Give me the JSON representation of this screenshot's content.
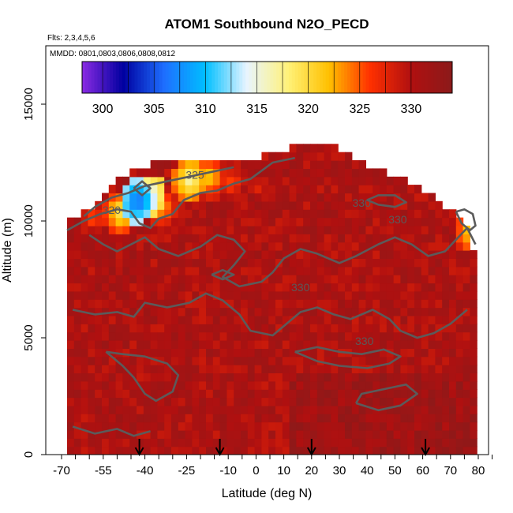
{
  "chart_data": {
    "type": "heatmap",
    "title": "ATOM1 Southbound N2O_PECD",
    "flights_label": "Flts: 2,3,4,5,6",
    "dates_label": "MMDD: 0801,0803,0806,0808,0812",
    "xlabel": "Latitude (deg N)",
    "ylabel": "Altitude (m)",
    "xlim": [
      -70,
      85
    ],
    "ylim": [
      0,
      17500
    ],
    "x_ticks": [
      -70,
      -55,
      -40,
      -25,
      -10,
      0,
      10,
      20,
      30,
      40,
      50,
      60,
      70,
      80
    ],
    "y_ticks": [
      0,
      5000,
      10000,
      15000
    ],
    "colorbar": {
      "range": [
        298,
        334
      ],
      "tick_values": [
        300,
        305,
        310,
        315,
        320,
        325,
        330
      ],
      "colors": [
        "#8a2be2",
        "#0000a0",
        "#1e6fff",
        "#00bfff",
        "#e8f4ff",
        "#fff27a",
        "#ffc000",
        "#ff3000",
        "#b01010",
        "#8b1a1a"
      ]
    },
    "contour_labels": [
      {
        "text": "320",
        "x": -52,
        "y": 10300
      },
      {
        "text": "325",
        "x": -22,
        "y": 11800
      },
      {
        "text": "330",
        "x": 38,
        "y": 10600
      },
      {
        "text": "330",
        "x": 51,
        "y": 9900
      },
      {
        "text": "330",
        "x": 16,
        "y": 7000
      },
      {
        "text": "330",
        "x": 39,
        "y": 4700
      }
    ],
    "flight_markers": [
      -42,
      -13,
      20,
      61
    ],
    "data_coverage_top": [
      [
        -68,
        9800
      ],
      [
        -60,
        10400
      ],
      [
        -55,
        10900
      ],
      [
        -48,
        11700
      ],
      [
        -40,
        12200
      ],
      [
        -32,
        12500
      ],
      [
        -24,
        12500
      ],
      [
        -16,
        12500
      ],
      [
        -8,
        12500
      ],
      [
        0,
        12500
      ],
      [
        8,
        12800
      ],
      [
        14,
        13000
      ],
      [
        24,
        13300
      ],
      [
        30,
        13000
      ],
      [
        36,
        12500
      ],
      [
        44,
        12000
      ],
      [
        50,
        11800
      ],
      [
        56,
        11500
      ],
      [
        62,
        11000
      ],
      [
        68,
        10500
      ],
      [
        72,
        10000
      ],
      [
        76,
        9500
      ],
      [
        78,
        8800
      ],
      [
        80,
        7000
      ],
      [
        80,
        0
      ]
    ],
    "low_anomalies": [
      {
        "x": -50,
        "y": 10200,
        "value": 318
      },
      {
        "x": -44,
        "y": 10700,
        "value": 305
      },
      {
        "x": -40,
        "y": 10900,
        "value": 312
      },
      {
        "x": -35,
        "y": 10400,
        "value": 321
      },
      {
        "x": -25,
        "y": 11600,
        "value": 316
      },
      {
        "x": -18,
        "y": 11700,
        "value": 320
      },
      {
        "x": -10,
        "y": 11500,
        "value": 324
      },
      {
        "x": 0,
        "y": 11300,
        "value": 326
      },
      {
        "x": 76,
        "y": 9400,
        "value": 319
      },
      {
        "x": -60,
        "y": 10000,
        "value": 324
      }
    ]
  }
}
